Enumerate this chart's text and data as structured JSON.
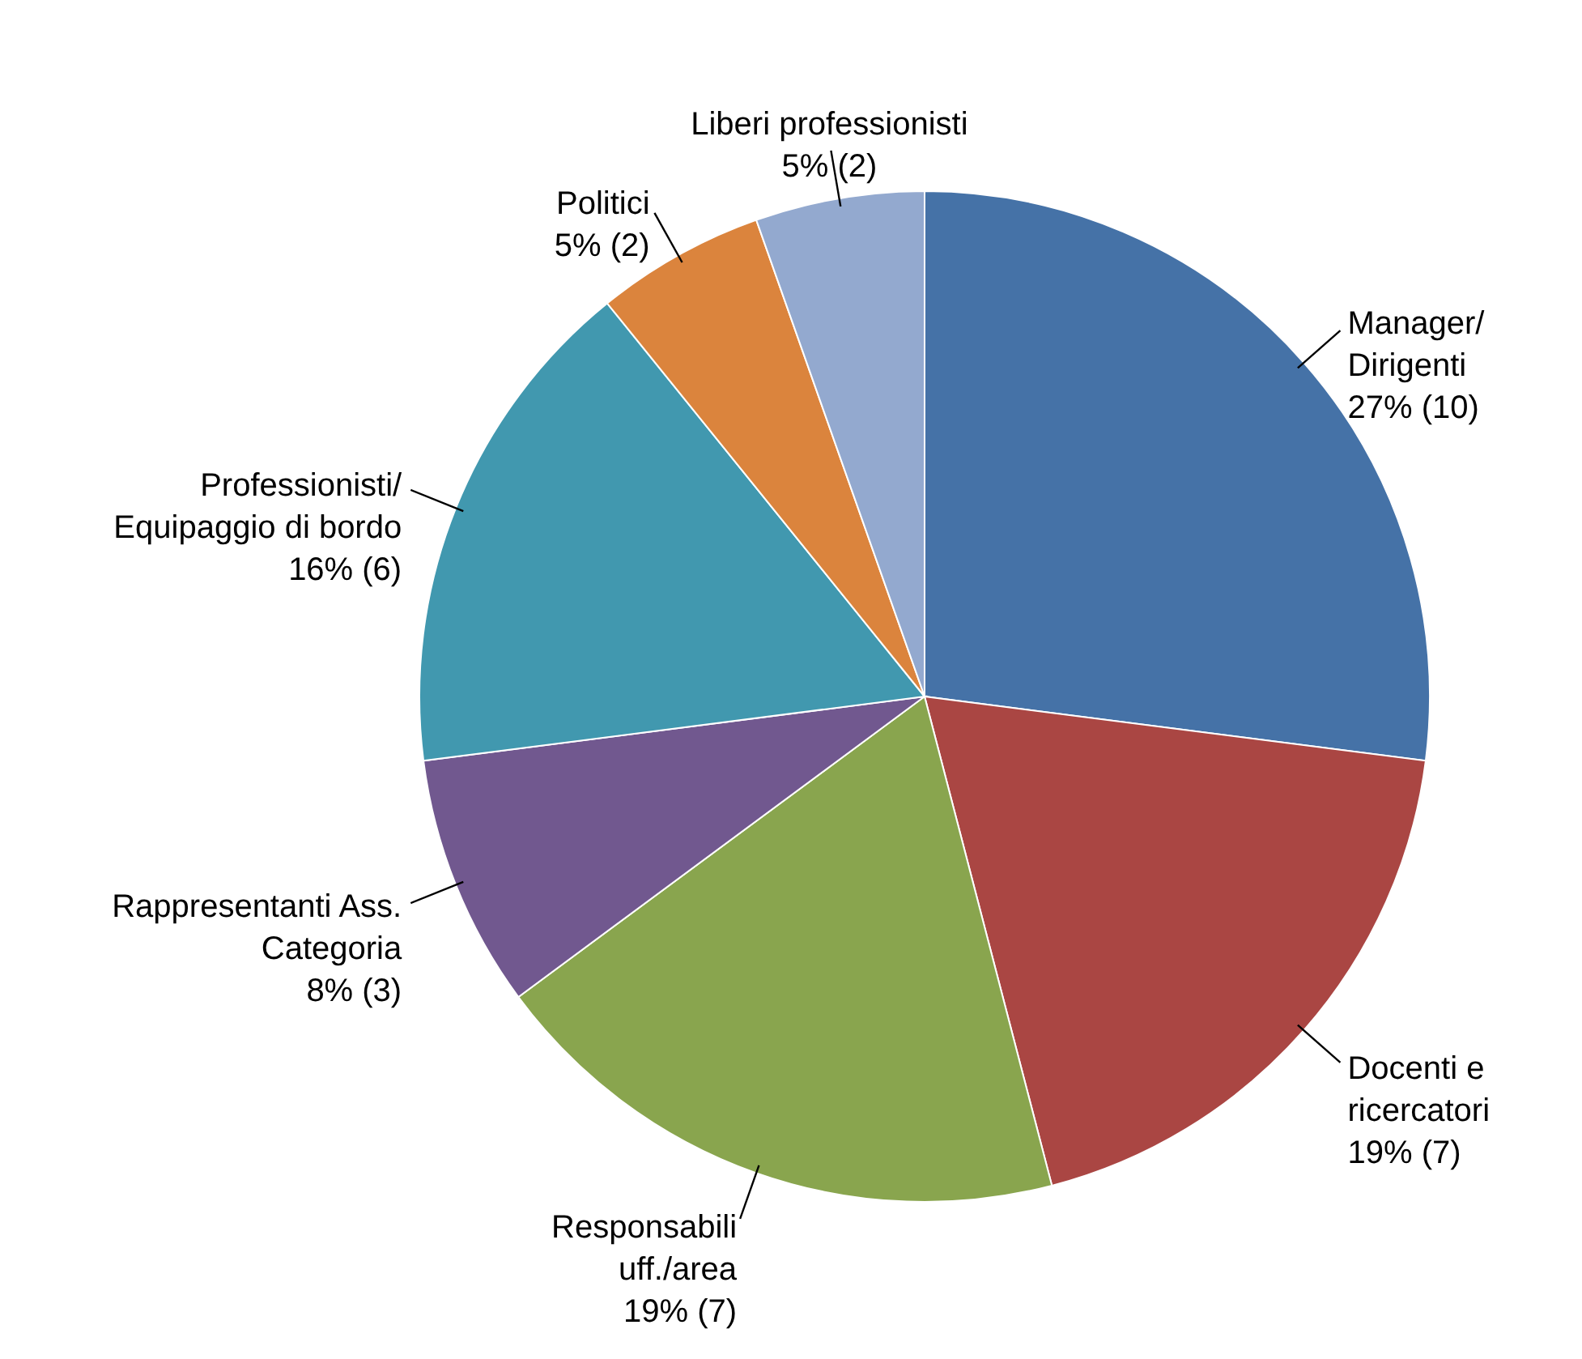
{
  "chart_data": {
    "type": "pie",
    "categories": [
      "Manager/\nDirigenti",
      "Docenti e\nricercatori",
      "Responsabili\nuff./area",
      "Rappresentanti Ass.\nCategoria",
      "Professionisti/\nEquipaggio di bordo",
      "Politici",
      "Liberi professionisti"
    ],
    "values": [
      10,
      7,
      7,
      3,
      6,
      2,
      2
    ],
    "value_labels": [
      "27% (10)",
      "19% (7)",
      "19% (7)",
      "8% (3)",
      "16% (6)",
      "5% (2)",
      "5% (2)"
    ],
    "colors": [
      "#4572a7",
      "#aa4643",
      "#89a54e",
      "#71588f",
      "#4198af",
      "#db843d",
      "#93a9cf"
    ]
  }
}
